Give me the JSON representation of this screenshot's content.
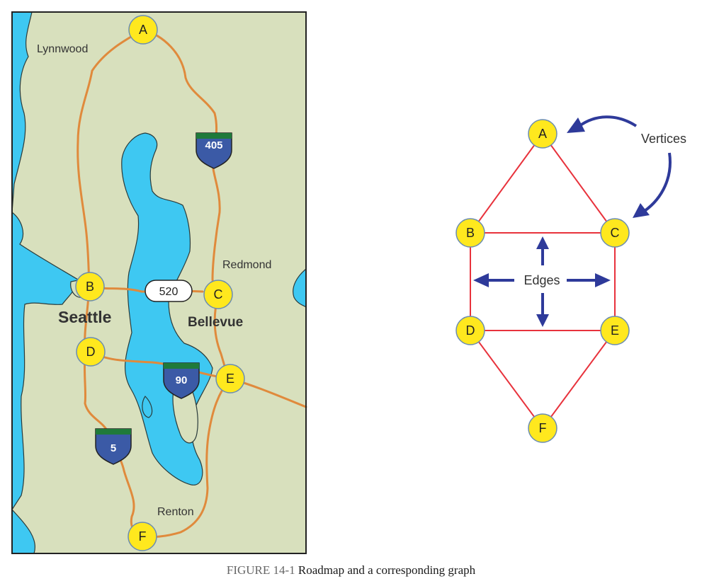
{
  "map": {
    "places": {
      "lynnwood": "Lynnwood",
      "redmond": "Redmond",
      "seattle": "Seattle",
      "bellevue": "Bellevue",
      "renton": "Renton"
    },
    "shields": {
      "i405": "405",
      "sr520": "520",
      "i90": "90",
      "i5": "5"
    },
    "nodes": {
      "A": "A",
      "B": "B",
      "C": "C",
      "D": "D",
      "E": "E",
      "F": "F"
    },
    "colors": {
      "land": "#d8e0bd",
      "water": "#3ec8f2",
      "road": "#e08a3c",
      "node": "#ffe81e",
      "shield": "#3b5aa6",
      "shield_top": "#1f7a3a"
    }
  },
  "graph": {
    "nodes": {
      "A": "A",
      "B": "B",
      "C": "C",
      "D": "D",
      "E": "E",
      "F": "F"
    },
    "edges": [
      [
        "A",
        "B"
      ],
      [
        "A",
        "C"
      ],
      [
        "B",
        "C"
      ],
      [
        "B",
        "D"
      ],
      [
        "C",
        "E"
      ],
      [
        "D",
        "E"
      ],
      [
        "D",
        "F"
      ],
      [
        "E",
        "F"
      ]
    ],
    "vertices_label": "Vertices",
    "edges_label": "Edges",
    "colors": {
      "edge": "#e8323c",
      "arrow": "#2e3a9a",
      "node": "#ffe81e"
    }
  },
  "caption": {
    "number": "FIGURE 14-1",
    "text": " Roadmap and a corresponding graph"
  }
}
